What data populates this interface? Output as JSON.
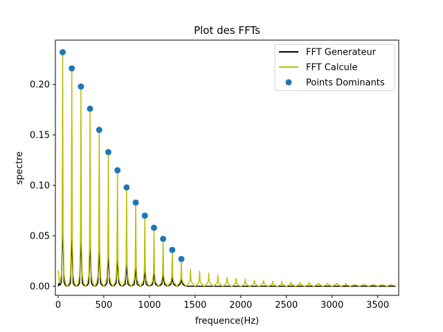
{
  "chart_data": {
    "type": "line",
    "title": "Plot des FFTs",
    "xlabel": "frequence(Hz)",
    "ylabel": "spectre",
    "xlim": [
      -30,
      3730
    ],
    "ylim": [
      -0.009,
      0.244
    ],
    "xticks": [
      0,
      500,
      1000,
      1500,
      2000,
      2500,
      3000,
      3500
    ],
    "yticks": [
      0.0,
      0.05,
      0.1,
      0.15,
      0.2
    ],
    "ytick_labels": [
      "0.00",
      "0.05",
      "0.10",
      "0.15",
      "0.20"
    ],
    "legend_position": "upper-right",
    "grid": false,
    "series": [
      {
        "name": "FFT Generateur",
        "color": "#000000",
        "kind": "line",
        "x": [
          0,
          10,
          20,
          35,
          47,
          50,
          53,
          65,
          80,
          100,
          120,
          135,
          147,
          150,
          153,
          165,
          180,
          200,
          220,
          235,
          247,
          250,
          253,
          265,
          280,
          300,
          320,
          335,
          347,
          350,
          353,
          365,
          380,
          400,
          420,
          435,
          447,
          450,
          453,
          465,
          480,
          500,
          520,
          535,
          547,
          550,
          553,
          565,
          580,
          600,
          620,
          635,
          647,
          650,
          653,
          665,
          680,
          700,
          720,
          735,
          747,
          750,
          753,
          765,
          780,
          800,
          820,
          835,
          847,
          850,
          853,
          865,
          880,
          900,
          920,
          935,
          947,
          950,
          953,
          965,
          980,
          1000,
          1020,
          1035,
          1047,
          1050,
          1053,
          1065,
          1080,
          1100,
          1120,
          1135,
          1147,
          1150,
          1153,
          1165,
          1180,
          1200,
          1220,
          1235,
          1247,
          1250,
          1253,
          1265,
          1280,
          1300,
          1320,
          1335,
          1347,
          1350,
          1353,
          1365,
          1380,
          1400,
          1450,
          1500,
          1550,
          1600,
          1700,
          1800,
          1900,
          2000,
          2200,
          2500,
          3000,
          3700
        ],
        "y": [
          0.0,
          0.003,
          0.001,
          0.004,
          0.05,
          0.18,
          0.05,
          0.004,
          0.001,
          0.0,
          0.001,
          0.003,
          0.04,
          0.16,
          0.04,
          0.003,
          0.001,
          0.0,
          0.001,
          0.003,
          0.04,
          0.14,
          0.04,
          0.003,
          0.001,
          0.0,
          0.001,
          0.003,
          0.035,
          0.13,
          0.035,
          0.003,
          0.001,
          0.0,
          0.001,
          0.003,
          0.03,
          0.115,
          0.03,
          0.003,
          0.001,
          0.0,
          0.001,
          0.003,
          0.025,
          0.1,
          0.025,
          0.003,
          0.001,
          0.0,
          0.001,
          0.003,
          0.022,
          0.085,
          0.022,
          0.003,
          0.001,
          0.0,
          0.001,
          0.002,
          0.018,
          0.07,
          0.018,
          0.002,
          0.001,
          0.0,
          0.001,
          0.002,
          0.015,
          0.06,
          0.015,
          0.002,
          0.001,
          0.0,
          0.001,
          0.002,
          0.012,
          0.05,
          0.012,
          0.002,
          0.001,
          0.0,
          0.001,
          0.002,
          0.01,
          0.04,
          0.01,
          0.002,
          0.001,
          0.0,
          0.001,
          0.002,
          0.008,
          0.032,
          0.008,
          0.002,
          0.001,
          0.0,
          0.001,
          0.002,
          0.006,
          0.025,
          0.006,
          0.002,
          0.001,
          0.0,
          0.001,
          0.002,
          0.005,
          0.018,
          0.005,
          0.002,
          0.001,
          0.0,
          0.0,
          0.0,
          0.0,
          0.0,
          0.0,
          0.0,
          0.0,
          0.0,
          0.0,
          0.0,
          0.0,
          0.0
        ]
      },
      {
        "name": "FFT Calcule",
        "color": "#bfbf00",
        "kind": "line",
        "x": [
          0,
          8,
          15,
          25,
          35,
          44,
          47,
          50,
          53,
          56,
          65,
          75,
          85,
          100,
          115,
          125,
          135,
          144,
          147,
          150,
          153,
          156,
          165,
          175,
          185,
          200,
          215,
          225,
          235,
          244,
          247,
          250,
          253,
          256,
          265,
          275,
          285,
          300,
          315,
          325,
          335,
          344,
          347,
          350,
          353,
          356,
          365,
          375,
          385,
          400,
          415,
          425,
          435,
          444,
          447,
          450,
          453,
          456,
          465,
          475,
          485,
          500,
          515,
          525,
          535,
          544,
          547,
          550,
          553,
          556,
          565,
          575,
          585,
          600,
          615,
          625,
          635,
          644,
          647,
          650,
          653,
          656,
          665,
          675,
          685,
          700,
          715,
          725,
          735,
          744,
          747,
          750,
          753,
          756,
          765,
          775,
          785,
          800,
          815,
          825,
          835,
          844,
          847,
          850,
          853,
          856,
          865,
          875,
          885,
          900,
          915,
          925,
          935,
          944,
          947,
          950,
          953,
          956,
          965,
          975,
          985,
          1000,
          1015,
          1025,
          1035,
          1044,
          1047,
          1050,
          1053,
          1056,
          1065,
          1075,
          1085,
          1100,
          1115,
          1125,
          1135,
          1144,
          1147,
          1150,
          1153,
          1156,
          1165,
          1175,
          1185,
          1200,
          1215,
          1225,
          1235,
          1244,
          1247,
          1250,
          1253,
          1256,
          1265,
          1275,
          1285,
          1300,
          1315,
          1325,
          1335,
          1344,
          1347,
          1350,
          1353,
          1356,
          1365,
          1375,
          1385,
          1400,
          1425,
          1445,
          1450,
          1455,
          1475,
          1500,
          1525,
          1545,
          1550,
          1555,
          1575,
          1600,
          1625,
          1645,
          1650,
          1655,
          1675,
          1700,
          1725,
          1745,
          1750,
          1755,
          1775,
          1800,
          1825,
          1845,
          1850,
          1855,
          1875,
          1900,
          1925,
          1945,
          1950,
          1955,
          1975,
          2000,
          2025,
          2045,
          2050,
          2055,
          2075,
          2100,
          2125,
          2145,
          2150,
          2155,
          2175,
          2200,
          2225,
          2245,
          2250,
          2255,
          2275,
          2300,
          2325,
          2345,
          2350,
          2355,
          2375,
          2400,
          2425,
          2445,
          2450,
          2455,
          2475,
          2500,
          2525,
          2545,
          2550,
          2555,
          2575,
          2600,
          2625,
          2645,
          2650,
          2655,
          2675,
          2700,
          2725,
          2745,
          2750,
          2755,
          2775,
          2800,
          2825,
          2845,
          2850,
          2855,
          2875,
          2900,
          2925,
          2945,
          2950,
          2955,
          2975,
          3000,
          3025,
          3045,
          3050,
          3055,
          3075,
          3100,
          3125,
          3145,
          3150,
          3155,
          3175,
          3200,
          3225,
          3245,
          3250,
          3255,
          3275,
          3300,
          3325,
          3345,
          3350,
          3355,
          3375,
          3400,
          3425,
          3445,
          3450,
          3455,
          3475,
          3500,
          3525,
          3545,
          3550,
          3555,
          3575,
          3600,
          3625,
          3645,
          3650,
          3655,
          3675,
          3700
        ],
        "y": [
          0.016,
          0.009,
          0.004,
          0.005,
          0.012,
          0.05,
          0.13,
          0.232,
          0.13,
          0.05,
          0.012,
          0.005,
          0.002,
          0.0,
          0.002,
          0.005,
          0.011,
          0.046,
          0.12,
          0.216,
          0.12,
          0.046,
          0.011,
          0.005,
          0.002,
          0.0,
          0.002,
          0.005,
          0.011,
          0.043,
          0.11,
          0.198,
          0.11,
          0.043,
          0.011,
          0.005,
          0.002,
          0.0,
          0.002,
          0.005,
          0.01,
          0.038,
          0.098,
          0.176,
          0.098,
          0.038,
          0.01,
          0.005,
          0.002,
          0.0,
          0.002,
          0.005,
          0.01,
          0.034,
          0.086,
          0.155,
          0.086,
          0.034,
          0.01,
          0.005,
          0.002,
          0.0,
          0.002,
          0.005,
          0.009,
          0.029,
          0.074,
          0.133,
          0.074,
          0.029,
          0.009,
          0.005,
          0.002,
          0.0,
          0.002,
          0.004,
          0.008,
          0.025,
          0.064,
          0.115,
          0.064,
          0.025,
          0.008,
          0.004,
          0.002,
          0.0,
          0.002,
          0.004,
          0.008,
          0.021,
          0.054,
          0.098,
          0.054,
          0.021,
          0.008,
          0.004,
          0.002,
          0.0,
          0.002,
          0.004,
          0.007,
          0.018,
          0.046,
          0.083,
          0.046,
          0.018,
          0.007,
          0.004,
          0.002,
          0.0,
          0.002,
          0.004,
          0.006,
          0.015,
          0.039,
          0.07,
          0.039,
          0.015,
          0.006,
          0.004,
          0.002,
          0.0,
          0.002,
          0.003,
          0.005,
          0.013,
          0.032,
          0.058,
          0.032,
          0.013,
          0.005,
          0.003,
          0.002,
          0.0,
          0.002,
          0.003,
          0.005,
          0.011,
          0.026,
          0.047,
          0.026,
          0.011,
          0.005,
          0.003,
          0.002,
          0.0,
          0.002,
          0.003,
          0.004,
          0.009,
          0.02,
          0.036,
          0.02,
          0.009,
          0.004,
          0.003,
          0.002,
          0.0,
          0.002,
          0.003,
          0.004,
          0.007,
          0.015,
          0.027,
          0.015,
          0.007,
          0.004,
          0.003,
          0.002,
          0.0,
          0.002,
          0.006,
          0.017,
          0.006,
          0.002,
          0.0,
          0.002,
          0.005,
          0.015,
          0.005,
          0.002,
          0.0,
          0.002,
          0.005,
          0.013,
          0.005,
          0.002,
          0.0,
          0.002,
          0.004,
          0.011,
          0.004,
          0.002,
          0.0,
          0.001,
          0.004,
          0.009,
          0.004,
          0.001,
          0.0,
          0.001,
          0.003,
          0.008,
          0.003,
          0.001,
          0.0,
          0.001,
          0.003,
          0.007,
          0.003,
          0.001,
          0.0,
          0.001,
          0.003,
          0.006,
          0.003,
          0.001,
          0.0,
          0.001,
          0.003,
          0.006,
          0.003,
          0.001,
          0.0,
          0.001,
          0.002,
          0.005,
          0.002,
          0.001,
          0.0,
          0.001,
          0.002,
          0.005,
          0.002,
          0.001,
          0.0,
          0.001,
          0.002,
          0.004,
          0.002,
          0.001,
          0.0,
          0.001,
          0.002,
          0.004,
          0.002,
          0.001,
          0.0,
          0.001,
          0.002,
          0.004,
          0.002,
          0.001,
          0.0,
          0.001,
          0.002,
          0.003,
          0.002,
          0.001,
          0.0,
          0.001,
          0.002,
          0.003,
          0.002,
          0.001,
          0.0,
          0.001,
          0.002,
          0.003,
          0.002,
          0.001,
          0.0,
          0.001,
          0.001,
          0.003,
          0.001,
          0.001,
          0.0,
          0.001,
          0.001,
          0.002,
          0.001,
          0.001,
          0.0,
          0.001,
          0.001,
          0.002,
          0.001,
          0.001,
          0.0,
          0.001,
          0.001,
          0.002,
          0.001,
          0.001,
          0.0,
          0.001,
          0.001,
          0.002,
          0.001,
          0.001,
          0.0,
          0.001,
          0.001,
          0.002,
          0.001,
          0.001,
          0.0
        ]
      },
      {
        "name": "Points Dominants",
        "color": "#1f77b4",
        "kind": "scatter",
        "x": [
          50,
          150,
          250,
          350,
          450,
          550,
          650,
          750,
          850,
          950,
          1050,
          1150,
          1250,
          1350
        ],
        "y": [
          0.232,
          0.216,
          0.198,
          0.176,
          0.155,
          0.133,
          0.115,
          0.098,
          0.083,
          0.07,
          0.058,
          0.047,
          0.036,
          0.027
        ]
      }
    ]
  }
}
